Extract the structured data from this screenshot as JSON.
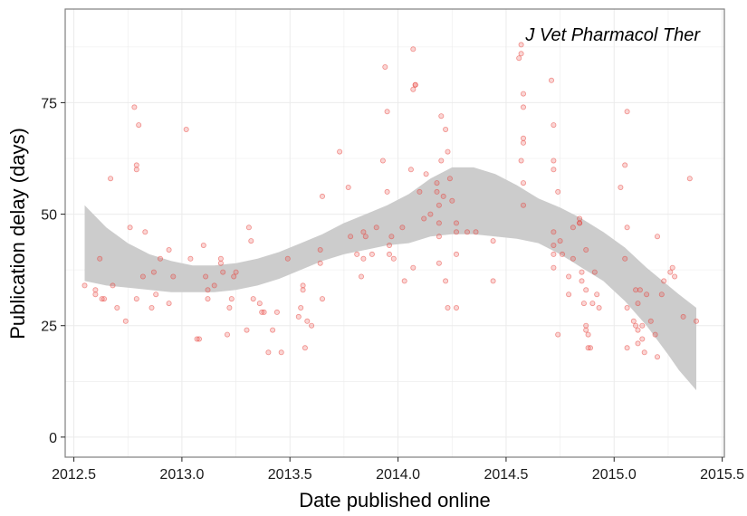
{
  "chart_data": {
    "type": "scatter",
    "title": "",
    "annotation": "J Vet Pharmacol Ther",
    "xlabel": "Date published online",
    "ylabel": "Publication delay (days)",
    "xlim": [
      2012.46,
      2015.51
    ],
    "ylim": [
      -4.5,
      96
    ],
    "x_ticks": [
      2012.5,
      2013.0,
      2013.5,
      2014.0,
      2014.5,
      2015.0,
      2015.5
    ],
    "x_tick_labels": [
      "2012.5",
      "2013.0",
      "2013.5",
      "2014.0",
      "2014.5",
      "2015.0",
      "2015.5"
    ],
    "y_ticks": [
      0,
      25,
      50,
      75
    ],
    "y_tick_labels": [
      "0",
      "25",
      "50",
      "75"
    ],
    "grid": true,
    "point_color": "#e8413a",
    "band_color": "#cccccc",
    "grid_color": "#ebebeb",
    "points": [
      [
        2012.55,
        34
      ],
      [
        2012.6,
        33
      ],
      [
        2012.6,
        32
      ],
      [
        2012.62,
        40
      ],
      [
        2012.63,
        31
      ],
      [
        2012.64,
        31
      ],
      [
        2012.67,
        58
      ],
      [
        2012.68,
        34
      ],
      [
        2012.7,
        29
      ],
      [
        2012.74,
        26
      ],
      [
        2012.76,
        47
      ],
      [
        2012.78,
        74
      ],
      [
        2012.79,
        61
      ],
      [
        2012.79,
        60
      ],
      [
        2012.79,
        31
      ],
      [
        2012.8,
        70
      ],
      [
        2012.82,
        36
      ],
      [
        2012.83,
        46
      ],
      [
        2012.86,
        29
      ],
      [
        2012.87,
        37
      ],
      [
        2012.88,
        32
      ],
      [
        2012.9,
        40
      ],
      [
        2012.94,
        42
      ],
      [
        2012.94,
        30
      ],
      [
        2012.96,
        36
      ],
      [
        2013.02,
        69
      ],
      [
        2013.04,
        40
      ],
      [
        2013.07,
        22
      ],
      [
        2013.08,
        22
      ],
      [
        2013.1,
        43
      ],
      [
        2013.11,
        36
      ],
      [
        2013.12,
        33
      ],
      [
        2013.12,
        31
      ],
      [
        2013.15,
        34
      ],
      [
        2013.18,
        40
      ],
      [
        2013.18,
        39
      ],
      [
        2013.19,
        37
      ],
      [
        2013.21,
        23
      ],
      [
        2013.22,
        29
      ],
      [
        2013.23,
        31
      ],
      [
        2013.24,
        36
      ],
      [
        2013.25,
        37
      ],
      [
        2013.3,
        24
      ],
      [
        2013.31,
        47
      ],
      [
        2013.32,
        44
      ],
      [
        2013.33,
        31
      ],
      [
        2013.36,
        30
      ],
      [
        2013.37,
        28
      ],
      [
        2013.38,
        28
      ],
      [
        2013.4,
        19
      ],
      [
        2013.42,
        24
      ],
      [
        2013.44,
        28
      ],
      [
        2013.46,
        19
      ],
      [
        2013.49,
        40
      ],
      [
        2013.54,
        27
      ],
      [
        2013.55,
        29
      ],
      [
        2013.56,
        34
      ],
      [
        2013.56,
        33
      ],
      [
        2013.57,
        20
      ],
      [
        2013.58,
        26
      ],
      [
        2013.6,
        25
      ],
      [
        2013.64,
        42
      ],
      [
        2013.64,
        39
      ],
      [
        2013.65,
        54
      ],
      [
        2013.65,
        31
      ],
      [
        2013.73,
        64
      ],
      [
        2013.77,
        56
      ],
      [
        2013.78,
        45
      ],
      [
        2013.81,
        41
      ],
      [
        2013.83,
        36
      ],
      [
        2013.84,
        46
      ],
      [
        2013.84,
        40
      ],
      [
        2013.85,
        45
      ],
      [
        2013.88,
        41
      ],
      [
        2013.9,
        47
      ],
      [
        2013.93,
        62
      ],
      [
        2013.94,
        83
      ],
      [
        2013.95,
        73
      ],
      [
        2013.95,
        55
      ],
      [
        2013.96,
        43
      ],
      [
        2013.96,
        41
      ],
      [
        2013.97,
        45
      ],
      [
        2013.98,
        40
      ],
      [
        2014.02,
        47
      ],
      [
        2014.03,
        35
      ],
      [
        2014.06,
        60
      ],
      [
        2014.07,
        87
      ],
      [
        2014.07,
        78
      ],
      [
        2014.08,
        79
      ],
      [
        2014.08,
        79
      ],
      [
        2014.07,
        38
      ],
      [
        2014.1,
        55
      ],
      [
        2014.12,
        49
      ],
      [
        2014.13,
        59
      ],
      [
        2014.15,
        50
      ],
      [
        2014.18,
        57
      ],
      [
        2014.18,
        55
      ],
      [
        2014.19,
        52
      ],
      [
        2014.19,
        48
      ],
      [
        2014.19,
        45
      ],
      [
        2014.19,
        39
      ],
      [
        2014.2,
        72
      ],
      [
        2014.2,
        62
      ],
      [
        2014.21,
        54
      ],
      [
        2014.22,
        35
      ],
      [
        2014.22,
        69
      ],
      [
        2014.23,
        64
      ],
      [
        2014.23,
        29
      ],
      [
        2014.24,
        58
      ],
      [
        2014.25,
        53
      ],
      [
        2014.27,
        48
      ],
      [
        2014.27,
        46
      ],
      [
        2014.27,
        29
      ],
      [
        2014.27,
        41
      ],
      [
        2014.32,
        46
      ],
      [
        2014.36,
        46
      ],
      [
        2014.44,
        44
      ],
      [
        2014.44,
        35
      ],
      [
        2014.57,
        88
      ],
      [
        2014.57,
        86
      ],
      [
        2014.56,
        85
      ],
      [
        2014.57,
        62
      ],
      [
        2014.58,
        77
      ],
      [
        2014.58,
        74
      ],
      [
        2014.58,
        67
      ],
      [
        2014.58,
        66
      ],
      [
        2014.58,
        57
      ],
      [
        2014.58,
        52
      ],
      [
        2014.71,
        80
      ],
      [
        2014.72,
        70
      ],
      [
        2014.72,
        62
      ],
      [
        2014.72,
        60
      ],
      [
        2014.72,
        46
      ],
      [
        2014.72,
        43
      ],
      [
        2014.72,
        41
      ],
      [
        2014.72,
        38
      ],
      [
        2014.74,
        55
      ],
      [
        2014.74,
        23
      ],
      [
        2014.75,
        44
      ],
      [
        2014.76,
        41
      ],
      [
        2014.79,
        32
      ],
      [
        2014.79,
        36
      ],
      [
        2014.81,
        47
      ],
      [
        2014.81,
        40
      ],
      [
        2014.84,
        49
      ],
      [
        2014.84,
        48
      ],
      [
        2014.84,
        48
      ],
      [
        2014.85,
        37
      ],
      [
        2014.85,
        35
      ],
      [
        2014.86,
        30
      ],
      [
        2014.87,
        33
      ],
      [
        2014.87,
        25
      ],
      [
        2014.87,
        24
      ],
      [
        2014.87,
        42
      ],
      [
        2014.88,
        23
      ],
      [
        2014.88,
        20
      ],
      [
        2014.89,
        20
      ],
      [
        2014.9,
        30
      ],
      [
        2014.91,
        37
      ],
      [
        2014.92,
        32
      ],
      [
        2014.93,
        29
      ],
      [
        2015.03,
        56
      ],
      [
        2015.05,
        61
      ],
      [
        2015.05,
        40
      ],
      [
        2015.06,
        73
      ],
      [
        2015.06,
        47
      ],
      [
        2015.06,
        29
      ],
      [
        2015.06,
        20
      ],
      [
        2015.09,
        26
      ],
      [
        2015.1,
        33
      ],
      [
        2015.1,
        25
      ],
      [
        2015.11,
        30
      ],
      [
        2015.11,
        24
      ],
      [
        2015.11,
        21
      ],
      [
        2015.12,
        33
      ],
      [
        2015.13,
        22
      ],
      [
        2015.13,
        25
      ],
      [
        2015.14,
        19
      ],
      [
        2015.15,
        32
      ],
      [
        2015.17,
        26
      ],
      [
        2015.19,
        23
      ],
      [
        2015.2,
        45
      ],
      [
        2015.2,
        18
      ],
      [
        2015.22,
        32
      ],
      [
        2015.23,
        35
      ],
      [
        2015.26,
        37
      ],
      [
        2015.27,
        38
      ],
      [
        2015.28,
        36
      ],
      [
        2015.32,
        27
      ],
      [
        2015.35,
        58
      ],
      [
        2015.38,
        26
      ]
    ],
    "smooth_line": [
      [
        2012.55,
        43.5
      ],
      [
        2012.65,
        40.5
      ],
      [
        2012.75,
        38.5
      ],
      [
        2012.85,
        37.0
      ],
      [
        2012.95,
        36.0
      ],
      [
        2013.05,
        35.5
      ],
      [
        2013.15,
        35.5
      ],
      [
        2013.25,
        36.0
      ],
      [
        2013.35,
        37.0
      ],
      [
        2013.45,
        38.5
      ],
      [
        2013.55,
        40.5
      ],
      [
        2013.65,
        42.5
      ],
      [
        2013.75,
        44.5
      ],
      [
        2013.85,
        46.0
      ],
      [
        2013.95,
        47.5
      ],
      [
        2014.05,
        49.0
      ],
      [
        2014.15,
        51.5
      ],
      [
        2014.25,
        53.0
      ],
      [
        2014.35,
        53.0
      ],
      [
        2014.45,
        52.0
      ],
      [
        2014.55,
        50.5
      ],
      [
        2014.65,
        48.5
      ],
      [
        2014.75,
        46.0
      ],
      [
        2014.85,
        43.5
      ],
      [
        2014.95,
        40.5
      ],
      [
        2015.05,
        36.5
      ],
      [
        2015.15,
        31.5
      ],
      [
        2015.25,
        26.0
      ],
      [
        2015.3,
        23.5
      ],
      [
        2015.38,
        20.0
      ]
    ],
    "band_upper": [
      [
        2012.55,
        52.0
      ],
      [
        2012.65,
        47.0
      ],
      [
        2012.75,
        43.5
      ],
      [
        2012.85,
        41.0
      ],
      [
        2012.95,
        39.5
      ],
      [
        2013.05,
        38.5
      ],
      [
        2013.15,
        38.5
      ],
      [
        2013.25,
        39.0
      ],
      [
        2013.35,
        40.0
      ],
      [
        2013.45,
        41.5
      ],
      [
        2013.55,
        43.5
      ],
      [
        2013.65,
        45.5
      ],
      [
        2013.75,
        48.0
      ],
      [
        2013.85,
        50.0
      ],
      [
        2013.95,
        52.0
      ],
      [
        2014.05,
        54.5
      ],
      [
        2014.15,
        58.0
      ],
      [
        2014.25,
        60.5
      ],
      [
        2014.35,
        60.5
      ],
      [
        2014.45,
        59.0
      ],
      [
        2014.55,
        56.5
      ],
      [
        2014.65,
        53.5
      ],
      [
        2014.75,
        51.5
      ],
      [
        2014.85,
        49.0
      ],
      [
        2014.95,
        46.0
      ],
      [
        2015.05,
        42.5
      ],
      [
        2015.15,
        38.0
      ],
      [
        2015.25,
        34.0
      ],
      [
        2015.3,
        32.0
      ],
      [
        2015.38,
        29.0
      ]
    ],
    "band_lower": [
      [
        2012.55,
        35.0
      ],
      [
        2012.65,
        34.0
      ],
      [
        2012.75,
        33.5
      ],
      [
        2012.85,
        33.0
      ],
      [
        2012.95,
        32.5
      ],
      [
        2013.05,
        32.5
      ],
      [
        2013.15,
        32.5
      ],
      [
        2013.25,
        33.0
      ],
      [
        2013.35,
        34.0
      ],
      [
        2013.45,
        35.5
      ],
      [
        2013.55,
        37.5
      ],
      [
        2013.65,
        39.5
      ],
      [
        2013.75,
        41.0
      ],
      [
        2013.85,
        42.0
      ],
      [
        2013.95,
        43.0
      ],
      [
        2014.05,
        43.5
      ],
      [
        2014.15,
        45.0
      ],
      [
        2014.25,
        45.5
      ],
      [
        2014.35,
        45.5
      ],
      [
        2014.45,
        45.0
      ],
      [
        2014.55,
        44.5
      ],
      [
        2014.65,
        43.5
      ],
      [
        2014.75,
        41.0
      ],
      [
        2014.85,
        38.0
      ],
      [
        2014.95,
        35.0
      ],
      [
        2015.05,
        30.5
      ],
      [
        2015.15,
        25.0
      ],
      [
        2015.25,
        18.5
      ],
      [
        2015.3,
        15.0
      ],
      [
        2015.38,
        10.5
      ]
    ]
  }
}
